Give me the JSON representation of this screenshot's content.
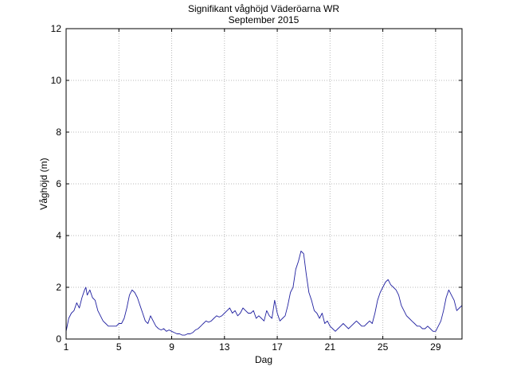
{
  "chart_data": {
    "type": "line",
    "title": "Signifikant våghöjd Väderöarna WR",
    "subtitle": "September 2015",
    "xlabel": "Dag",
    "ylabel": "Våghöjd (m)",
    "xlim": [
      1,
      31
    ],
    "ylim": [
      0,
      12
    ],
    "grid": true,
    "x_ticks": [
      1,
      5,
      9,
      13,
      17,
      21,
      25,
      29
    ],
    "x_tick_labels": [
      "1",
      "5",
      "9",
      "13",
      "17",
      "21",
      "25",
      "29"
    ],
    "y_ticks": [
      0,
      2,
      4,
      6,
      8,
      10,
      12
    ],
    "y_tick_labels": [
      "0",
      "2",
      "4",
      "6",
      "8",
      "10",
      "12"
    ],
    "series": [
      {
        "color": "#2020a0",
        "x": [
          1.0,
          1.2,
          1.4,
          1.6,
          1.8,
          2.0,
          2.2,
          2.4,
          2.5,
          2.6,
          2.8,
          3.0,
          3.2,
          3.4,
          3.6,
          3.8,
          4.0,
          4.2,
          4.4,
          4.6,
          4.8,
          5.0,
          5.2,
          5.4,
          5.6,
          5.8,
          6.0,
          6.2,
          6.4,
          6.6,
          6.8,
          7.0,
          7.2,
          7.4,
          7.6,
          7.8,
          8.0,
          8.2,
          8.4,
          8.6,
          8.8,
          9.0,
          9.2,
          9.4,
          9.6,
          9.8,
          10.0,
          10.2,
          10.4,
          10.6,
          10.8,
          11.0,
          11.2,
          11.4,
          11.6,
          11.8,
          12.0,
          12.2,
          12.4,
          12.6,
          12.8,
          13.0,
          13.2,
          13.4,
          13.6,
          13.8,
          14.0,
          14.2,
          14.4,
          14.6,
          14.8,
          15.0,
          15.2,
          15.4,
          15.6,
          15.8,
          16.0,
          16.2,
          16.4,
          16.6,
          16.8,
          17.0,
          17.2,
          17.4,
          17.6,
          17.8,
          18.0,
          18.2,
          18.4,
          18.6,
          18.8,
          19.0,
          19.2,
          19.4,
          19.6,
          19.8,
          20.0,
          20.2,
          20.4,
          20.6,
          20.8,
          21.0,
          21.2,
          21.4,
          21.6,
          21.8,
          22.0,
          22.2,
          22.4,
          22.6,
          22.8,
          23.0,
          23.2,
          23.4,
          23.6,
          23.8,
          24.0,
          24.2,
          24.4,
          24.6,
          24.8,
          25.0,
          25.2,
          25.4,
          25.6,
          25.8,
          26.0,
          26.2,
          26.4,
          26.6,
          26.8,
          27.0,
          27.2,
          27.4,
          27.6,
          27.8,
          28.0,
          28.2,
          28.4,
          28.6,
          28.8,
          29.0,
          29.2,
          29.4,
          29.6,
          29.8,
          30.0,
          30.2,
          30.4,
          30.6,
          30.8,
          31.0
        ],
        "y": [
          0.3,
          0.8,
          1.0,
          1.1,
          1.4,
          1.2,
          1.6,
          1.9,
          2.0,
          1.7,
          1.9,
          1.6,
          1.5,
          1.1,
          0.9,
          0.7,
          0.6,
          0.5,
          0.5,
          0.5,
          0.5,
          0.6,
          0.6,
          0.8,
          1.2,
          1.7,
          1.9,
          1.8,
          1.6,
          1.3,
          1.0,
          0.7,
          0.6,
          0.9,
          0.7,
          0.5,
          0.4,
          0.35,
          0.4,
          0.3,
          0.35,
          0.3,
          0.25,
          0.2,
          0.2,
          0.15,
          0.15,
          0.2,
          0.2,
          0.25,
          0.35,
          0.4,
          0.5,
          0.6,
          0.7,
          0.65,
          0.7,
          0.8,
          0.9,
          0.85,
          0.9,
          1.0,
          1.1,
          1.2,
          1.0,
          1.1,
          0.9,
          1.0,
          1.2,
          1.1,
          1.0,
          1.0,
          1.1,
          0.8,
          0.9,
          0.8,
          0.7,
          1.1,
          0.9,
          0.8,
          1.5,
          1.0,
          0.7,
          0.8,
          0.9,
          1.3,
          1.8,
          2.0,
          2.7,
          3.0,
          3.4,
          3.3,
          2.5,
          1.8,
          1.5,
          1.1,
          1.0,
          0.8,
          1.0,
          0.6,
          0.7,
          0.5,
          0.4,
          0.3,
          0.4,
          0.5,
          0.6,
          0.5,
          0.4,
          0.5,
          0.6,
          0.7,
          0.6,
          0.5,
          0.5,
          0.6,
          0.7,
          0.6,
          1.0,
          1.5,
          1.8,
          2.0,
          2.2,
          2.3,
          2.1,
          2.0,
          1.9,
          1.7,
          1.3,
          1.1,
          0.9,
          0.8,
          0.7,
          0.6,
          0.5,
          0.5,
          0.4,
          0.4,
          0.5,
          0.4,
          0.3,
          0.3,
          0.5,
          0.7,
          1.1,
          1.6,
          1.9,
          1.7,
          1.5,
          1.1,
          1.2,
          1.3
        ]
      }
    ]
  }
}
